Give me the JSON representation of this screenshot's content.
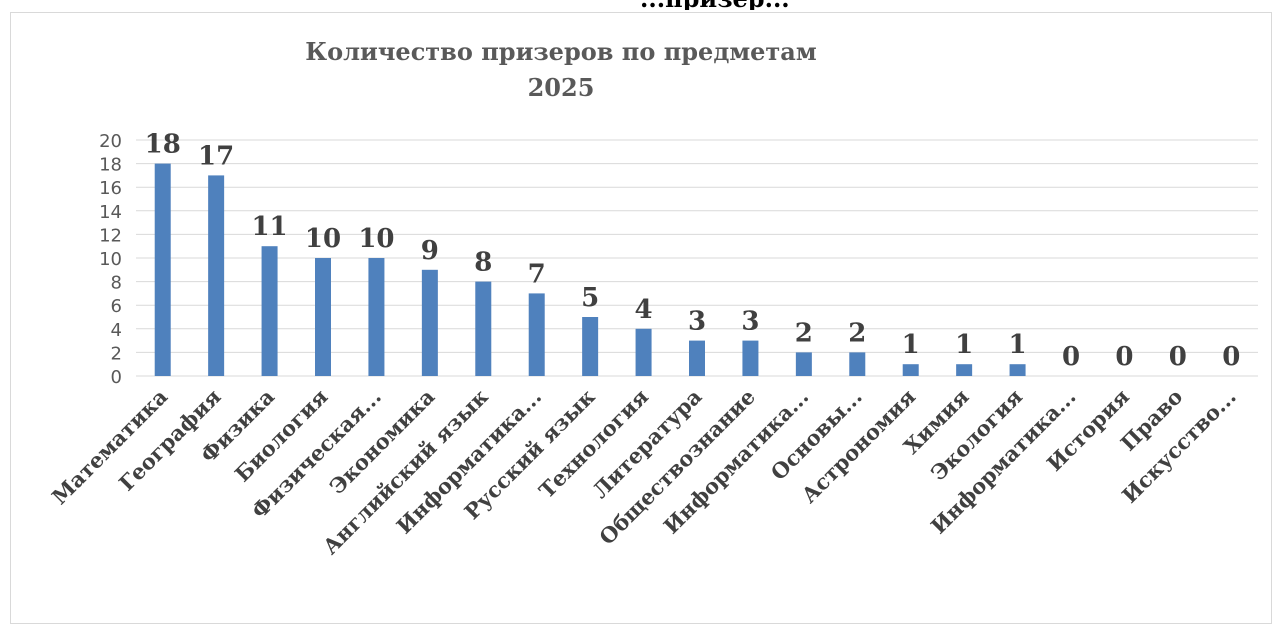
{
  "page_top_text": "...призер...",
  "chart_data": {
    "type": "bar",
    "title": "Количество призеров по предметам",
    "subtitle": "2025",
    "categories": [
      "Математика",
      "География",
      "Физика",
      "Биология",
      "Физическая...",
      "Экономика",
      "Английский язык",
      "Информатика...",
      "Русский язык",
      "Технология",
      "Литература",
      "Обществознание",
      "Информатика...",
      "Основы...",
      "Астрономия",
      "Химия",
      "Экология",
      "Информатика...",
      "История",
      "Право",
      "Искусство..."
    ],
    "values": [
      18,
      17,
      11,
      10,
      10,
      9,
      8,
      7,
      5,
      4,
      3,
      3,
      2,
      2,
      1,
      1,
      1,
      0,
      0,
      0,
      0
    ],
    "ylim": [
      0,
      20
    ],
    "yticks": [
      0,
      2,
      4,
      6,
      8,
      10,
      12,
      14,
      16,
      18,
      20
    ],
    "grid": true,
    "legend": "none",
    "colors": {
      "bar": "#4f81bd",
      "grid": "#d9d9d9",
      "title": "#595959",
      "label": "#404040"
    }
  }
}
